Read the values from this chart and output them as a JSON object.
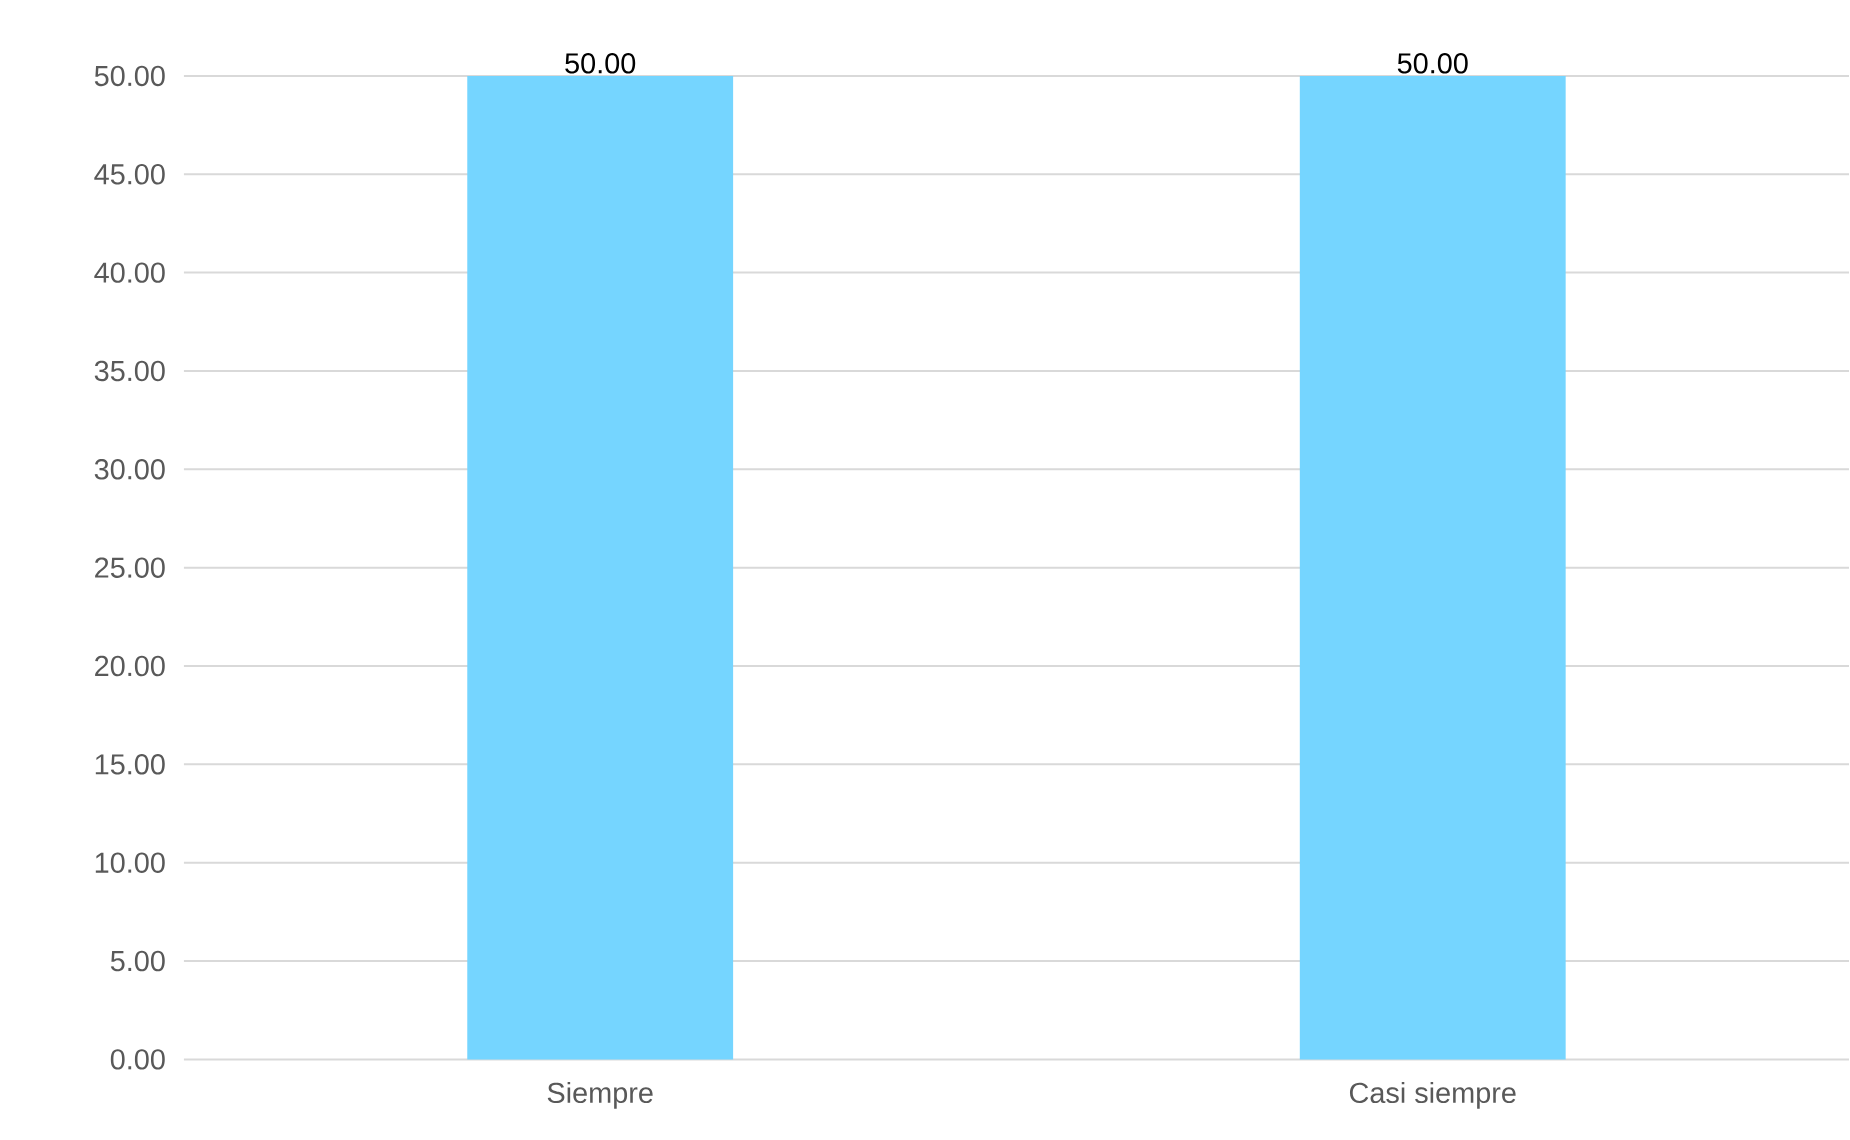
{
  "chart_data": {
    "type": "bar",
    "categories": [
      "Siempre",
      "Casi siempre"
    ],
    "values": [
      50,
      50
    ],
    "color": "#75d5ff",
    "value_labels": [
      "50.00",
      "50.00"
    ],
    "ylim": [
      0,
      50
    ],
    "yticks": [
      {
        "value": 0,
        "label": "0.00"
      },
      {
        "value": 5,
        "label": "5.00"
      },
      {
        "value": 10,
        "label": "10.00"
      },
      {
        "value": 15,
        "label": "15.00"
      },
      {
        "value": 20,
        "label": "20.00"
      },
      {
        "value": 25,
        "label": "25.00"
      },
      {
        "value": 30,
        "label": "30.00"
      },
      {
        "value": 35,
        "label": "35.00"
      },
      {
        "value": 40,
        "label": "40.00"
      },
      {
        "value": 45,
        "label": "45.00"
      },
      {
        "value": 50,
        "label": "50.00"
      }
    ],
    "grid": "y"
  }
}
